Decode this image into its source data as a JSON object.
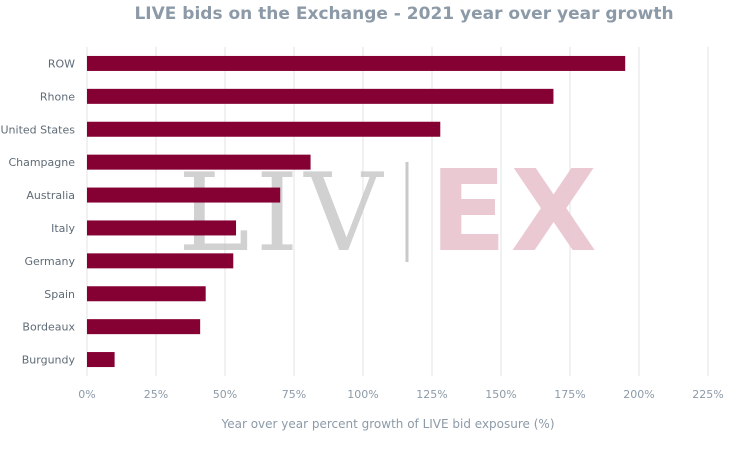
{
  "chart_data": {
    "type": "bar",
    "orientation": "horizontal",
    "title": "LIVE bids on the Exchange - 2021 year over year growth",
    "xlabel": "Year over year percent growth of LIVE bid exposure (%)",
    "ylabel": "",
    "categories": [
      "ROW",
      "Rhone",
      "United States",
      "Champagne",
      "Australia",
      "Italy",
      "Germany",
      "Spain",
      "Bordeaux",
      "Burgundy"
    ],
    "values": [
      195,
      169,
      128,
      81,
      70,
      54,
      53,
      43,
      41,
      10
    ],
    "xlim": [
      0,
      225
    ],
    "xticks": [
      "0%",
      "25%",
      "50%",
      "75%",
      "100%",
      "125%",
      "150%",
      "175%",
      "200%",
      "225%"
    ],
    "xtick_values": [
      0,
      25,
      50,
      75,
      100,
      125,
      150,
      175,
      200,
      225
    ],
    "grid": true,
    "bar_color": "#850033"
  },
  "watermark": {
    "liv": "LIV",
    "ex": "EX"
  }
}
